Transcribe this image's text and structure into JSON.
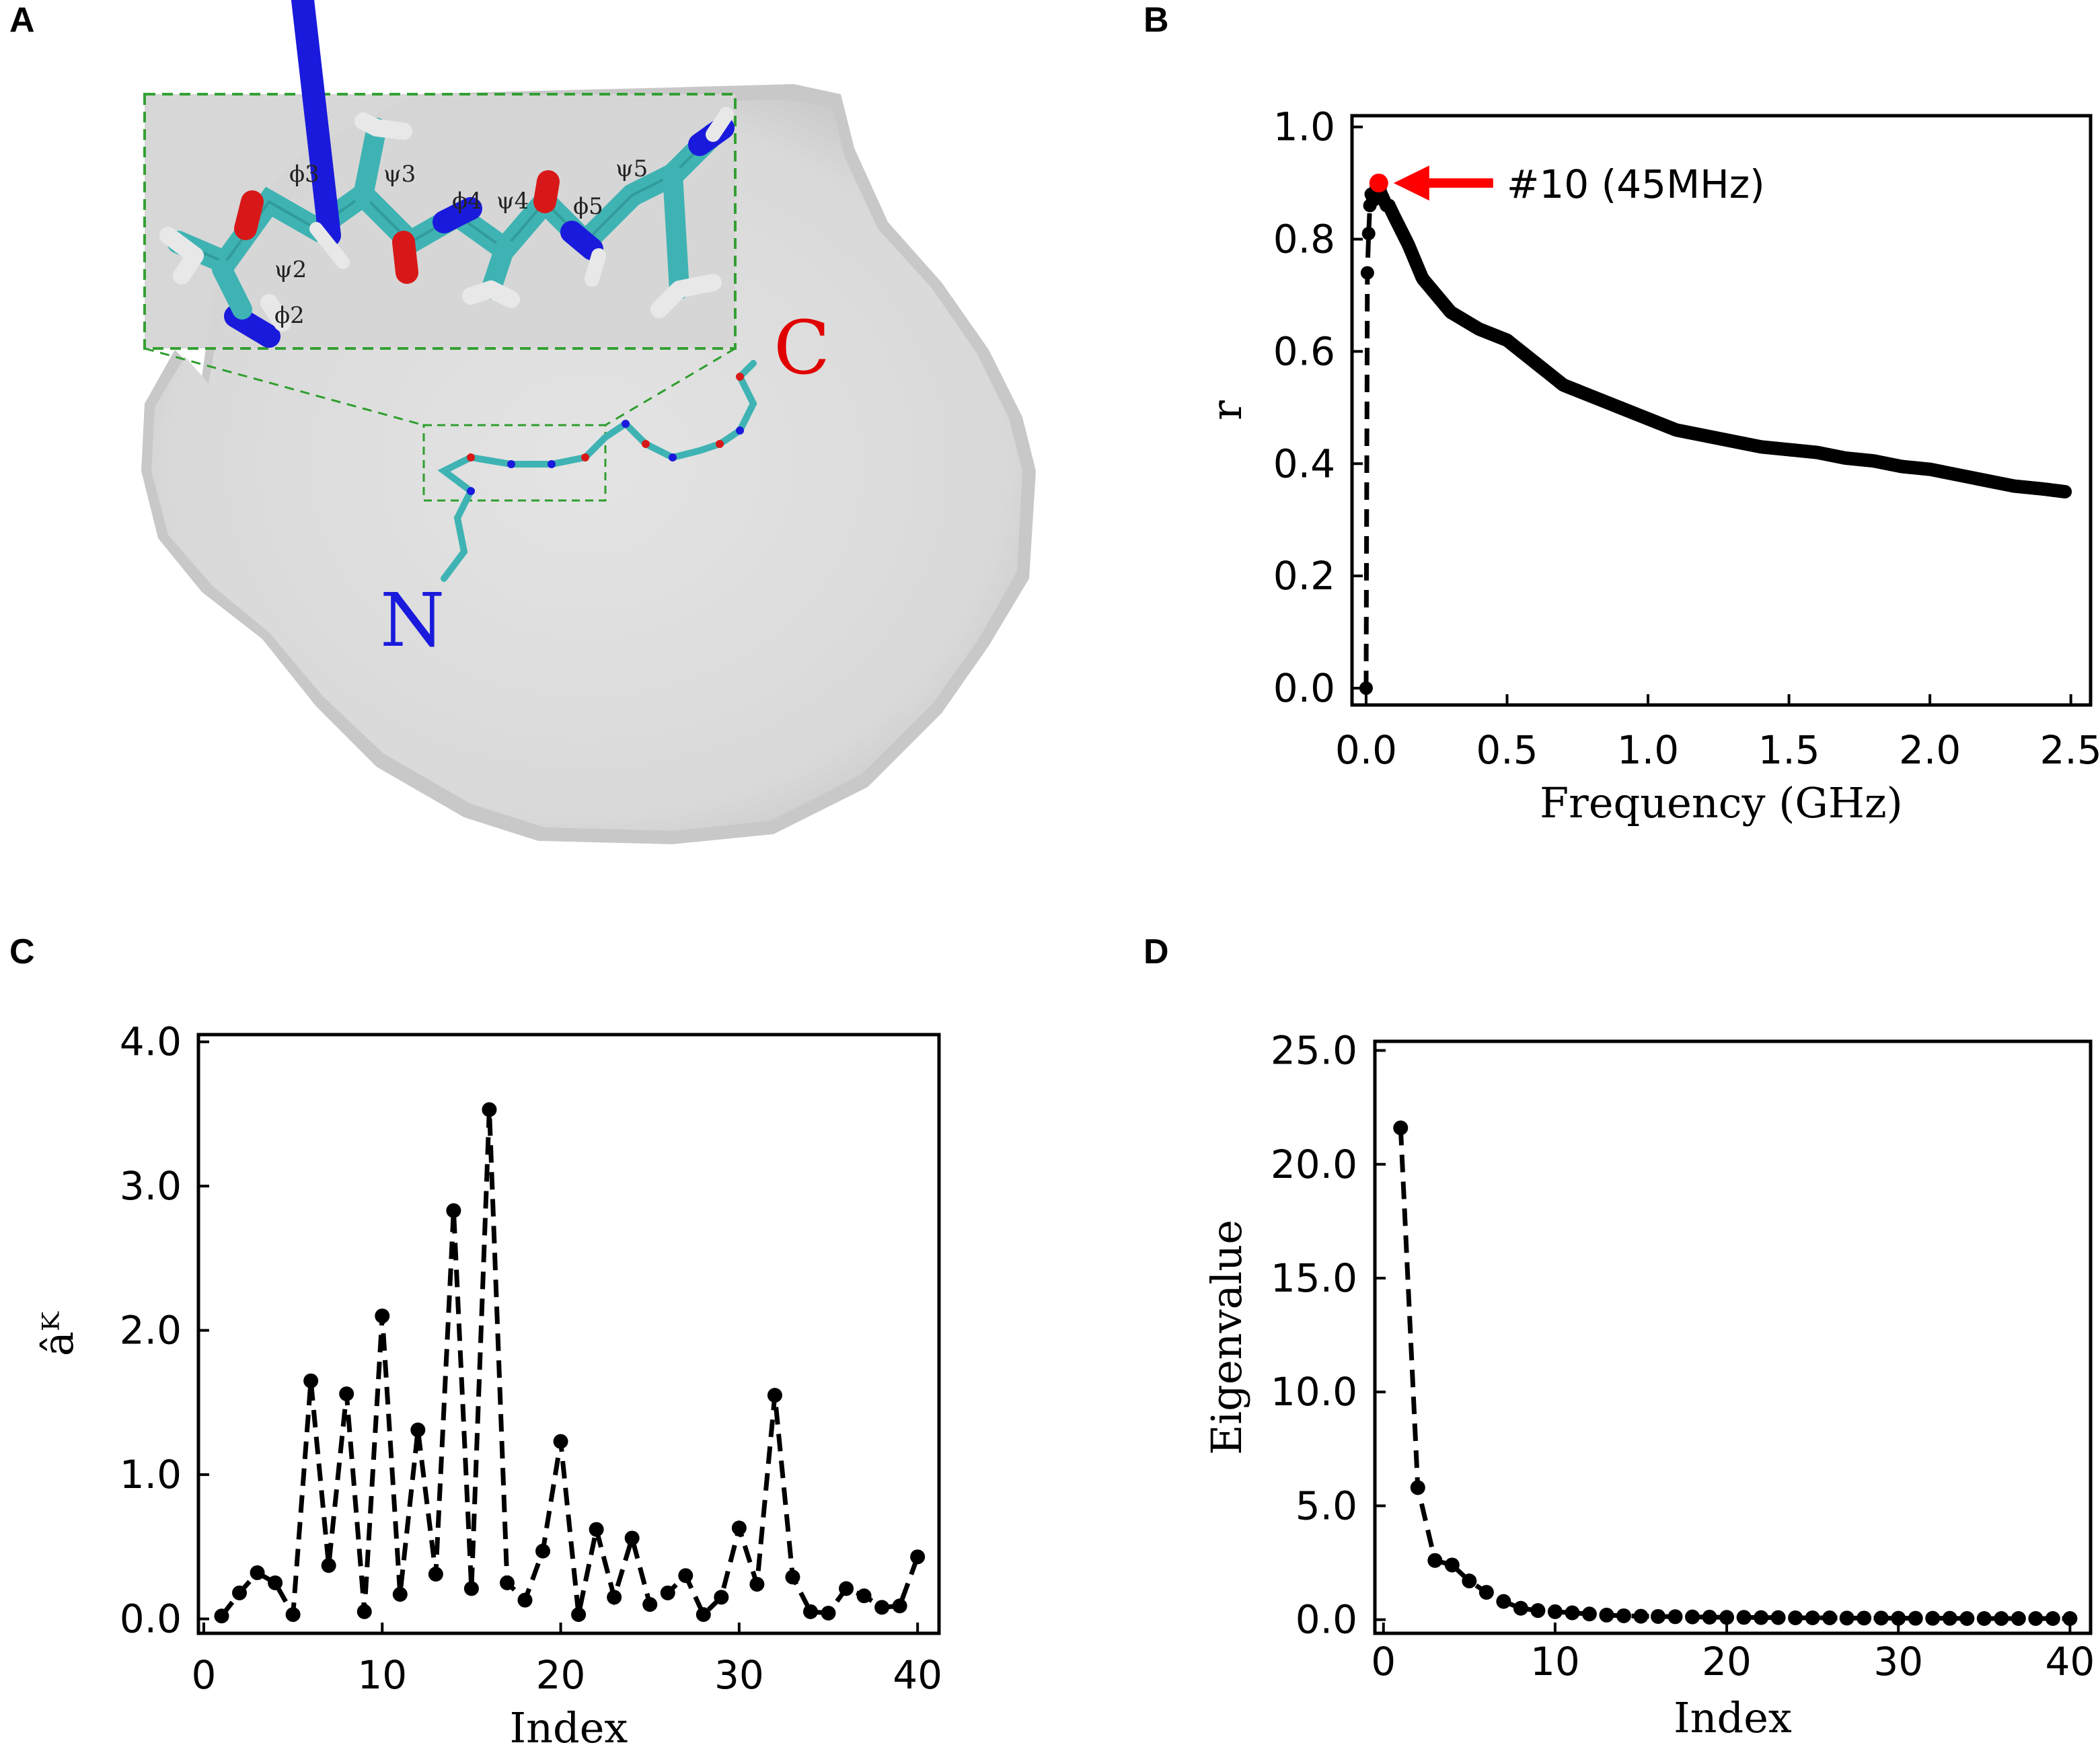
{
  "panels": {
    "a": "A",
    "b": "B",
    "c": "C",
    "d": "D"
  },
  "molecule": {
    "n_terminus": "N",
    "c_terminus": "C",
    "angle_labels": [
      "ϕ3",
      "ψ3",
      "ϕ4",
      "ψ4",
      "ϕ5",
      "ψ5",
      "ψ2",
      "ϕ2"
    ],
    "colors": {
      "n_color": "#1a1aff",
      "c_color": "#e00000",
      "inset_border": "#2e9e2e",
      "carbon": "#3fb3b3",
      "nitrogen": "#1a1adc",
      "oxygen": "#d81818",
      "hydrogen": "#e8e8e8"
    }
  },
  "chart_data": [
    {
      "id": "b",
      "type": "line",
      "title": "",
      "xlabel": "Frequency (GHz)",
      "ylabel": "r",
      "xlim": [
        -0.05,
        2.57
      ],
      "ylim": [
        -0.03,
        1.02
      ],
      "xticks": [
        0.0,
        0.5,
        1.0,
        1.5,
        2.0,
        2.5
      ],
      "xtick_labels": [
        "0.0",
        "0.5",
        "1.0",
        "1.5",
        "2.0",
        "2.5"
      ],
      "yticks": [
        0.0,
        0.2,
        0.4,
        0.6,
        0.8,
        1.0
      ],
      "ytick_labels": [
        "0.0",
        "0.2",
        "0.4",
        "0.6",
        "0.8",
        "1.0"
      ],
      "curve_knots": {
        "x": [
          0.0,
          0.0045,
          0.009,
          0.0135,
          0.018,
          0.027,
          0.036,
          0.045,
          0.054,
          0.063,
          0.072,
          0.081,
          0.1,
          0.15,
          0.2,
          0.3,
          0.4,
          0.5,
          0.6,
          0.7,
          0.8,
          0.9,
          1.0,
          1.1,
          1.2,
          1.3,
          1.4,
          1.5,
          1.6,
          1.7,
          1.8,
          1.9,
          2.0,
          2.1,
          2.2,
          2.3,
          2.4,
          2.48
        ],
        "y": [
          0.0,
          0.74,
          0.81,
          0.86,
          0.88,
          0.87,
          0.88,
          0.9,
          0.88,
          0.87,
          0.86,
          0.86,
          0.84,
          0.79,
          0.73,
          0.67,
          0.64,
          0.62,
          0.58,
          0.54,
          0.52,
          0.5,
          0.48,
          0.46,
          0.45,
          0.44,
          0.43,
          0.425,
          0.42,
          0.41,
          0.405,
          0.395,
          0.39,
          0.38,
          0.37,
          0.36,
          0.355,
          0.35
        ]
      },
      "sample_step": 0.0045,
      "highlight": {
        "x": 0.045,
        "y": 0.9,
        "label": "#10 (45MHz)",
        "color": "#ff0000"
      }
    },
    {
      "id": "c",
      "type": "line",
      "title": "",
      "xlabel": "Index",
      "ylabel": "âᴷ",
      "xlim": [
        -0.3,
        41.2
      ],
      "ylim": [
        -0.1,
        4.05
      ],
      "xticks": [
        0,
        10,
        20,
        30,
        40
      ],
      "xtick_labels": [
        "0",
        "10",
        "20",
        "30",
        "40"
      ],
      "yticks": [
        0.0,
        1.0,
        2.0,
        3.0,
        4.0
      ],
      "ytick_labels": [
        "0.0",
        "1.0",
        "2.0",
        "3.0",
        "4.0"
      ],
      "x": [
        1,
        2,
        3,
        4,
        5,
        6,
        7,
        8,
        9,
        10,
        11,
        12,
        13,
        14,
        15,
        16,
        17,
        18,
        19,
        20,
        21,
        22,
        23,
        24,
        25,
        26,
        27,
        28,
        29,
        30,
        31,
        32,
        33,
        34,
        35,
        36,
        37,
        38,
        39,
        40
      ],
      "values": [
        0.02,
        0.18,
        0.32,
        0.25,
        0.03,
        1.65,
        0.37,
        1.56,
        0.05,
        2.1,
        0.17,
        1.31,
        0.31,
        2.83,
        0.21,
        3.53,
        0.25,
        0.13,
        0.47,
        1.23,
        0.03,
        0.62,
        0.15,
        0.56,
        0.1,
        0.18,
        0.3,
        0.03,
        0.15,
        0.63,
        0.24,
        1.55,
        0.29,
        0.05,
        0.04,
        0.21,
        0.16,
        0.08,
        0.09,
        0.43
      ]
    },
    {
      "id": "d",
      "type": "line",
      "title": "",
      "xlabel": "Index",
      "ylabel": "Eigenvalue",
      "xlim": [
        -0.5,
        41.2
      ],
      "ylim": [
        -0.6,
        25.4
      ],
      "xticks": [
        0,
        10,
        20,
        30,
        40
      ],
      "xtick_labels": [
        "0",
        "10",
        "20",
        "30",
        "40"
      ],
      "yticks": [
        0.0,
        5.0,
        10.0,
        15.0,
        20.0,
        25.0
      ],
      "ytick_labels": [
        "0.0",
        "5.0",
        "10.0",
        "15.0",
        "20.0",
        "25.0"
      ],
      "x": [
        1,
        2,
        3,
        4,
        5,
        6,
        7,
        8,
        9,
        10,
        11,
        12,
        13,
        14,
        15,
        16,
        17,
        18,
        19,
        20,
        21,
        22,
        23,
        24,
        25,
        26,
        27,
        28,
        29,
        30,
        31,
        32,
        33,
        34,
        35,
        36,
        37,
        38,
        39,
        40
      ],
      "values": [
        21.6,
        5.8,
        2.6,
        2.4,
        1.7,
        1.2,
        0.8,
        0.5,
        0.4,
        0.35,
        0.3,
        0.25,
        0.2,
        0.17,
        0.15,
        0.14,
        0.13,
        0.12,
        0.11,
        0.1,
        0.1,
        0.09,
        0.09,
        0.08,
        0.08,
        0.08,
        0.07,
        0.07,
        0.07,
        0.06,
        0.06,
        0.06,
        0.06,
        0.05,
        0.05,
        0.05,
        0.05,
        0.05,
        0.05,
        0.05
      ]
    }
  ]
}
